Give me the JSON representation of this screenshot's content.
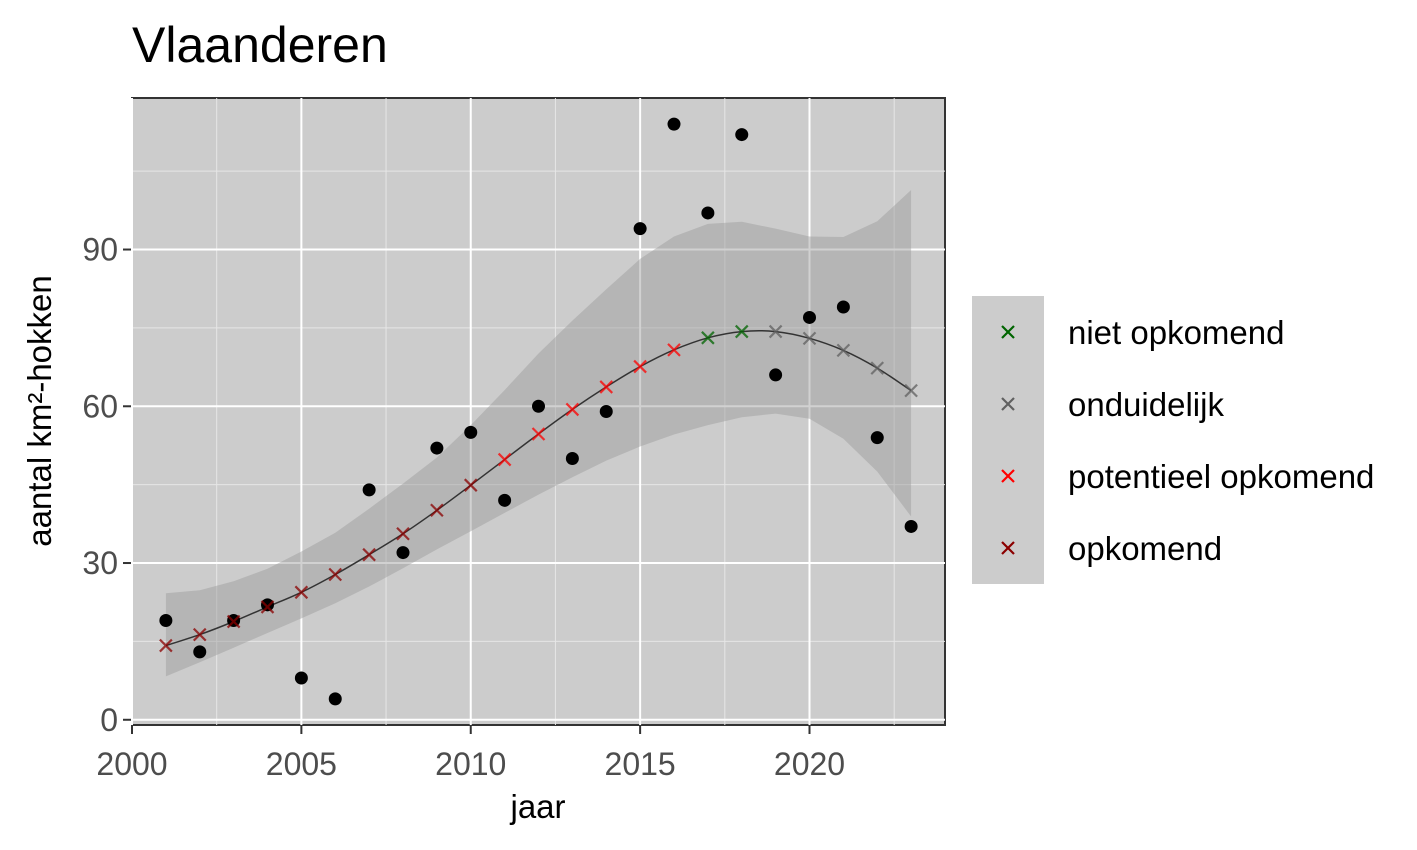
{
  "chart_data": {
    "type": "scatter",
    "title": "Vlaanderen",
    "xlabel": "jaar",
    "ylabel": "aantal km²-hokken",
    "xlim": [
      2000,
      2024
    ],
    "ylim": [
      -1,
      119
    ],
    "x_ticks": [
      2000,
      2005,
      2010,
      2015,
      2020
    ],
    "x_tick_labels": [
      "2000",
      "2005",
      "2010",
      "2015",
      "2020"
    ],
    "y_ticks": [
      0,
      30,
      60,
      90
    ],
    "y_tick_labels": [
      "0",
      "30",
      "60",
      "90"
    ],
    "grid": true,
    "legend_position": "right",
    "panel_color": "#cccccc",
    "observed": {
      "x": [
        2001,
        2002,
        2003,
        2004,
        2005,
        2006,
        2007,
        2008,
        2009,
        2010,
        2011,
        2012,
        2013,
        2014,
        2015,
        2016,
        2017,
        2018,
        2019,
        2020,
        2021,
        2022,
        2023
      ],
      "y": [
        19,
        13,
        19,
        22,
        8,
        4,
        44,
        32,
        52,
        55,
        42,
        60,
        50,
        59,
        94,
        114,
        97,
        112,
        66,
        77,
        79,
        54,
        37
      ],
      "color": "#000000"
    },
    "fit": {
      "x": [
        2001,
        2002,
        2003,
        2004,
        2005,
        2006,
        2007,
        2008,
        2009,
        2010,
        2011,
        2012,
        2013,
        2014,
        2015,
        2016,
        2017,
        2018,
        2019,
        2020,
        2021,
        2022,
        2023
      ],
      "y": [
        14.2,
        16.3,
        18.8,
        21.6,
        24.4,
        27.8,
        31.6,
        35.6,
        40.1,
        44.9,
        49.8,
        54.7,
        59.4,
        63.7,
        67.6,
        70.8,
        73.1,
        74.3,
        74.3,
        73.0,
        70.7,
        67.3,
        63.0
      ],
      "lower": [
        8.3,
        11.0,
        13.8,
        16.6,
        19.4,
        22.3,
        25.5,
        29.0,
        32.6,
        36.1,
        39.6,
        43.1,
        46.4,
        49.6,
        52.3,
        54.6,
        56.4,
        57.9,
        58.6,
        57.6,
        53.8,
        47.5,
        38.9
      ],
      "upper": [
        24.2,
        24.8,
        26.5,
        28.9,
        32.2,
        35.8,
        40.4,
        45.2,
        50.2,
        56.4,
        63.1,
        70.1,
        76.4,
        82.4,
        88.2,
        92.5,
        94.9,
        95.3,
        94.0,
        92.5,
        92.4,
        95.4,
        101.4
      ],
      "status": [
        "opkomend",
        "opkomend",
        "opkomend",
        "opkomend",
        "opkomend",
        "opkomend",
        "opkomend",
        "opkomend",
        "opkomend",
        "opkomend",
        "potentieel opkomend",
        "potentieel opkomend",
        "potentieel opkomend",
        "potentieel opkomend",
        "potentieel opkomend",
        "potentieel opkomend",
        "niet opkomend",
        "niet opkomend",
        "onduidelijk",
        "onduidelijk",
        "onduidelijk",
        "onduidelijk",
        "onduidelijk"
      ]
    },
    "legend": [
      {
        "label": "niet opkomend",
        "color": "#006400"
      },
      {
        "label": "onduidelijk",
        "color": "#606060"
      },
      {
        "label": "potentieel opkomend",
        "color": "#ff0000"
      },
      {
        "label": "opkomend",
        "color": "#8b0000"
      }
    ]
  }
}
